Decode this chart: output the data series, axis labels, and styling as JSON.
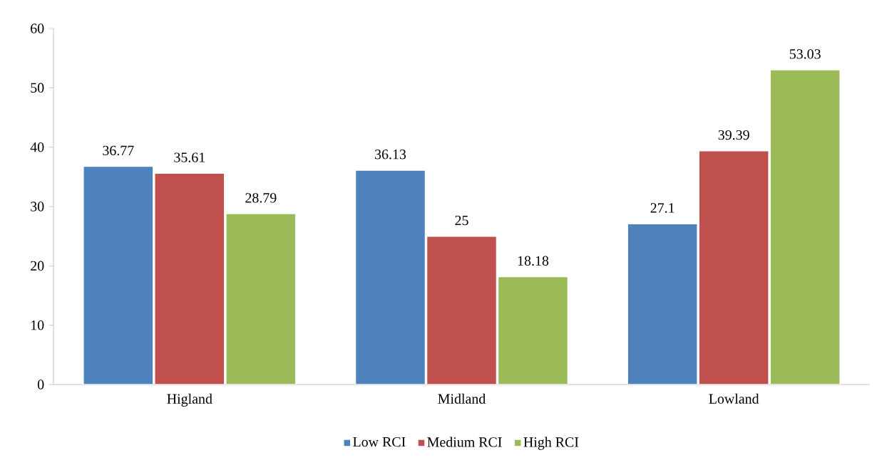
{
  "chart_data": {
    "type": "bar",
    "categories": [
      "Higland",
      "Midland",
      "Lowland"
    ],
    "series": [
      {
        "name": "Low RCI",
        "color": "#4f81bd",
        "values": [
          36.77,
          36.13,
          27.1
        ]
      },
      {
        "name": "Medium RCI",
        "color": "#c0504d",
        "values": [
          35.61,
          25,
          39.39
        ]
      },
      {
        "name": "High RCI",
        "color": "#9bbb59",
        "values": [
          28.79,
          18.18,
          53.03
        ]
      }
    ],
    "ylim": [
      0,
      60
    ],
    "yticks": [
      0,
      10,
      20,
      30,
      40,
      50,
      60
    ],
    "grid": false,
    "legend": "bottom",
    "data_labels": true
  }
}
